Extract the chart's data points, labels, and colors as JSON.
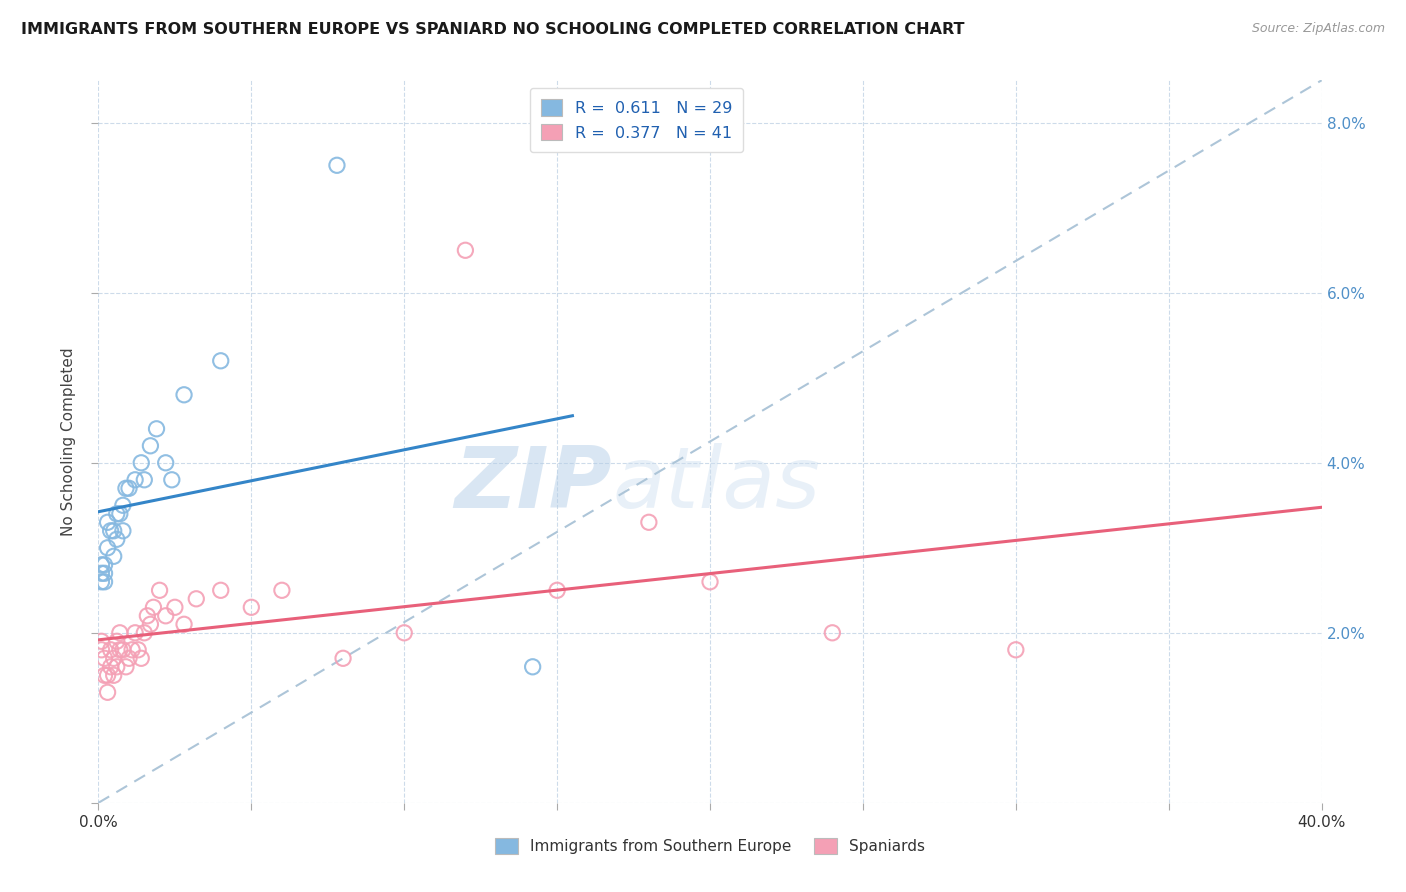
{
  "title": "IMMIGRANTS FROM SOUTHERN EUROPE VS SPANIARD NO SCHOOLING COMPLETED CORRELATION CHART",
  "source": "Source: ZipAtlas.com",
  "ylabel": "No Schooling Completed",
  "xlim": [
    0,
    0.4
  ],
  "ylim": [
    0,
    0.085
  ],
  "xtick_positions": [
    0.0,
    0.05,
    0.1,
    0.15,
    0.2,
    0.25,
    0.3,
    0.35,
    0.4
  ],
  "xtick_labels_show": {
    "0.0": "0.0%",
    "0.40": "40.0%"
  },
  "ytick_right_positions": [
    0.02,
    0.04,
    0.06,
    0.08
  ],
  "ytick_right_labels": [
    "2.0%",
    "4.0%",
    "6.0%",
    "8.0%"
  ],
  "blue_R": 0.611,
  "blue_N": 29,
  "pink_R": 0.377,
  "pink_N": 41,
  "blue_color": "#85b8e0",
  "pink_color": "#f4a0b5",
  "blue_line_color": "#3485c8",
  "pink_line_color": "#e8607a",
  "ref_line_color": "#adc5d8",
  "watermark_zip": "ZIP",
  "watermark_atlas": "atlas",
  "background_color": "#ffffff",
  "grid_color": "#c8d8e8",
  "blue_x": [
    0.001,
    0.001,
    0.001,
    0.002,
    0.002,
    0.002,
    0.003,
    0.003,
    0.004,
    0.005,
    0.005,
    0.006,
    0.006,
    0.007,
    0.008,
    0.008,
    0.009,
    0.01,
    0.012,
    0.014,
    0.015,
    0.017,
    0.019,
    0.022,
    0.024,
    0.028,
    0.04,
    0.078,
    0.142
  ],
  "blue_y": [
    0.026,
    0.027,
    0.028,
    0.026,
    0.027,
    0.028,
    0.03,
    0.033,
    0.032,
    0.029,
    0.032,
    0.031,
    0.034,
    0.034,
    0.035,
    0.032,
    0.037,
    0.037,
    0.038,
    0.04,
    0.038,
    0.042,
    0.044,
    0.04,
    0.038,
    0.048,
    0.052,
    0.075,
    0.016
  ],
  "pink_x": [
    0.001,
    0.001,
    0.002,
    0.002,
    0.003,
    0.003,
    0.004,
    0.004,
    0.005,
    0.005,
    0.006,
    0.006,
    0.007,
    0.007,
    0.008,
    0.009,
    0.01,
    0.011,
    0.012,
    0.013,
    0.014,
    0.015,
    0.016,
    0.017,
    0.018,
    0.02,
    0.022,
    0.025,
    0.028,
    0.032,
    0.04,
    0.05,
    0.06,
    0.08,
    0.1,
    0.12,
    0.15,
    0.18,
    0.2,
    0.24,
    0.3
  ],
  "pink_y": [
    0.019,
    0.018,
    0.017,
    0.015,
    0.015,
    0.013,
    0.016,
    0.018,
    0.017,
    0.015,
    0.019,
    0.016,
    0.02,
    0.018,
    0.018,
    0.016,
    0.017,
    0.018,
    0.02,
    0.018,
    0.017,
    0.02,
    0.022,
    0.021,
    0.023,
    0.025,
    0.022,
    0.023,
    0.021,
    0.024,
    0.025,
    0.023,
    0.025,
    0.017,
    0.02,
    0.065,
    0.025,
    0.033,
    0.026,
    0.02,
    0.018
  ],
  "legend_bottom_labels": [
    "Immigrants from Southern Europe",
    "Spaniards"
  ]
}
